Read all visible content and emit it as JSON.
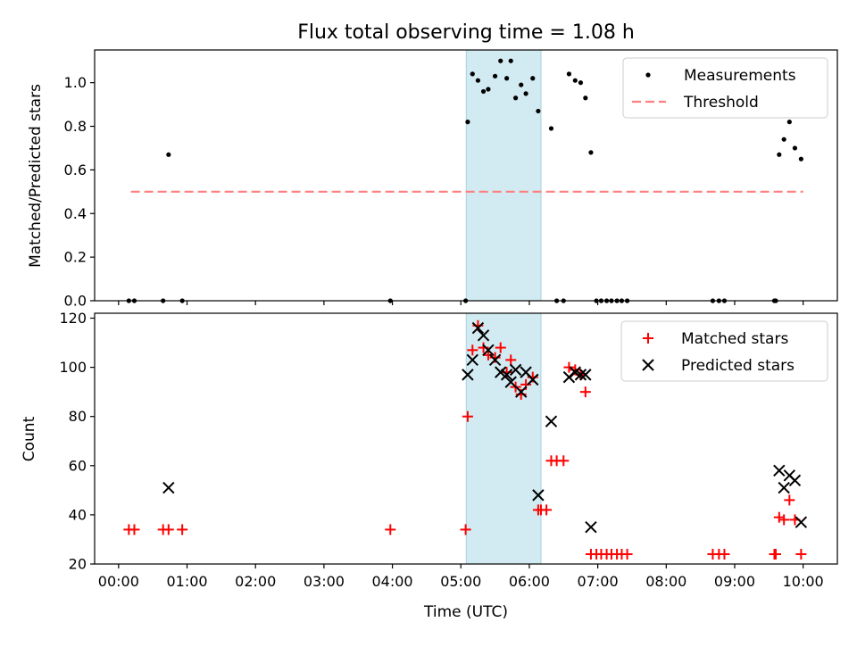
{
  "chart_data": [
    {
      "type": "scatter",
      "title": "Flux total observing time = 1.08 h",
      "ylabel": "Matched/Predicted stars",
      "xlabel": "",
      "xlim": [
        -0.35,
        10.5
      ],
      "ylim": [
        0,
        1.15
      ],
      "yticks": [
        0.0,
        0.2,
        0.4,
        0.6,
        0.8,
        1.0
      ],
      "ytick_labels": [
        "0.0",
        "0.2",
        "0.4",
        "0.6",
        "0.8",
        "1.0"
      ],
      "shaded_region": {
        "x_start": 5.08,
        "x_end": 6.17,
        "color": "#add8e6"
      },
      "legend_position": "upper right",
      "series": [
        {
          "name": "Measurements",
          "marker": "dot",
          "color": "#000000",
          "x": [
            0.15,
            0.23,
            0.65,
            0.73,
            0.93,
            3.97,
            5.07,
            5.1,
            5.17,
            5.25,
            5.33,
            5.4,
            5.5,
            5.58,
            5.67,
            5.73,
            5.8,
            5.88,
            5.95,
            6.05,
            6.13,
            6.32,
            6.4,
            6.5,
            6.58,
            6.67,
            6.75,
            6.82,
            6.9,
            6.98,
            7.05,
            7.13,
            7.2,
            7.28,
            7.35,
            7.43,
            8.68,
            8.77,
            8.85,
            9.58,
            9.6,
            9.65,
            9.72,
            9.8,
            9.88,
            9.97
          ],
          "y": [
            0.0,
            0.0,
            0.0,
            0.67,
            0.0,
            0.0,
            0.0,
            0.82,
            1.04,
            1.01,
            0.96,
            0.97,
            1.03,
            1.1,
            1.02,
            1.1,
            0.93,
            0.99,
            0.95,
            1.02,
            0.87,
            0.79,
            0.0,
            0.0,
            1.04,
            1.01,
            1.0,
            0.93,
            0.68,
            0.0,
            0.0,
            0.0,
            0.0,
            0.0,
            0.0,
            0.0,
            0.0,
            0.0,
            0.0,
            0.0,
            0.0,
            0.67,
            0.74,
            0.82,
            0.7,
            0.65
          ]
        },
        {
          "name": "Threshold",
          "marker": "dashed-line",
          "color": "#ff7f7f",
          "x": [
            0.18,
            10.0
          ],
          "y": [
            0.5,
            0.5
          ]
        }
      ]
    },
    {
      "type": "scatter",
      "title": "",
      "ylabel": "Count",
      "xlabel": "Time (UTC)",
      "xlim": [
        -0.35,
        10.5
      ],
      "ylim": [
        20,
        122
      ],
      "yticks": [
        20,
        40,
        60,
        80,
        100,
        120
      ],
      "ytick_labels": [
        "20",
        "40",
        "60",
        "80",
        "100",
        "120"
      ],
      "xticks": [
        0,
        1,
        2,
        3,
        4,
        5,
        6,
        7,
        8,
        9,
        10
      ],
      "xtick_labels": [
        "00:00",
        "01:00",
        "02:00",
        "03:00",
        "04:00",
        "05:00",
        "06:00",
        "07:00",
        "08:00",
        "09:00",
        "10:00"
      ],
      "shaded_region": {
        "x_start": 5.08,
        "x_end": 6.17,
        "color": "#add8e6"
      },
      "legend_position": "upper right",
      "series": [
        {
          "name": "Matched stars",
          "marker": "plus",
          "color": "#ff0000",
          "x": [
            0.15,
            0.23,
            0.65,
            0.73,
            0.93,
            3.97,
            5.07,
            5.1,
            5.17,
            5.25,
            5.33,
            5.4,
            5.5,
            5.58,
            5.67,
            5.73,
            5.8,
            5.88,
            5.95,
            6.05,
            6.13,
            6.17,
            6.25,
            6.32,
            6.4,
            6.5,
            6.58,
            6.67,
            6.75,
            6.82,
            6.9,
            6.98,
            7.05,
            7.13,
            7.2,
            7.28,
            7.35,
            7.43,
            8.68,
            8.77,
            8.85,
            9.58,
            9.6,
            9.65,
            9.72,
            9.8,
            9.88,
            9.97
          ],
          "y": [
            34,
            34,
            34,
            34,
            34,
            34,
            34,
            80,
            107,
            117,
            108,
            105,
            104,
            108,
            98,
            103,
            92,
            89,
            93,
            96,
            42,
            42,
            42,
            62,
            62,
            62,
            100,
            99,
            97,
            90,
            24,
            24,
            24,
            24,
            24,
            24,
            24,
            24,
            24,
            24,
            24,
            24,
            24,
            39,
            38,
            46,
            38,
            24
          ]
        },
        {
          "name": "Predicted stars",
          "marker": "x",
          "color": "#000000",
          "x": [
            0.73,
            5.1,
            5.17,
            5.25,
            5.33,
            5.4,
            5.5,
            5.58,
            5.67,
            5.73,
            5.8,
            5.88,
            5.95,
            6.05,
            6.13,
            6.32,
            6.58,
            6.67,
            6.75,
            6.82,
            6.9,
            9.65,
            9.72,
            9.8,
            9.88,
            9.97
          ],
          "y": [
            51,
            97,
            103,
            116,
            113,
            107,
            103,
            98,
            97,
            94,
            99,
            90,
            98,
            95,
            48,
            78,
            96,
            98,
            97,
            97,
            35,
            58,
            51,
            56,
            54,
            37
          ]
        }
      ]
    }
  ]
}
